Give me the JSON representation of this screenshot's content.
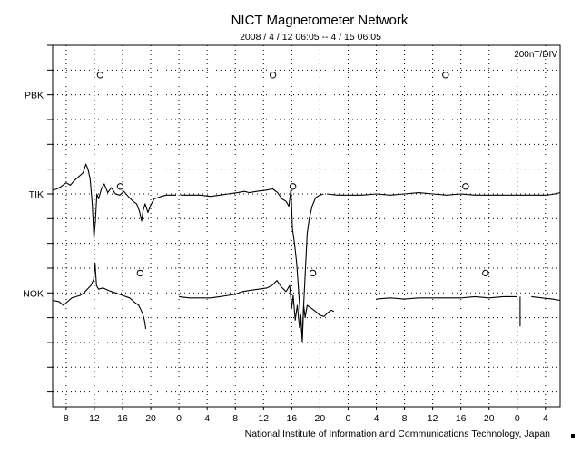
{
  "chart_data": {
    "type": "line",
    "title": "NICT Magnetometer Network",
    "subtitle": "2008 / 4 / 12   06:05 --  4 / 15   06:05",
    "scale_label": "200nT/DIV",
    "footer": "National Institute of Information and Communications Technology, Japan",
    "grid": true,
    "xlim": [
      6.0833,
      78.0833
    ],
    "x_unit": "hours since 2008-04-12 00:00 (UT)",
    "x_ticks": [
      8,
      12,
      16,
      20,
      24,
      28,
      32,
      36,
      40,
      44,
      48,
      52,
      56,
      60,
      64,
      68,
      72,
      76
    ],
    "x_tick_labels": [
      "8",
      "12",
      "16",
      "20",
      "0",
      "4",
      "8",
      "12",
      "16",
      "20",
      "0",
      "4",
      "8",
      "12",
      "16",
      "20",
      "0",
      "4"
    ],
    "y_unit": "divisions (200 nT per division)",
    "ylim": [
      -2.6,
      12.0
    ],
    "series": [
      {
        "name": "PBK",
        "baseline": 10,
        "markers_x": [
          12.83,
          37.33,
          61.83
        ],
        "marker_y": 10.8,
        "segments": []
      },
      {
        "name": "TIK",
        "baseline": 6,
        "markers_x": [
          15.67,
          40.17,
          64.67
        ],
        "marker_y": 6.3,
        "segments": [
          [
            [
              6.08,
              6.15
            ],
            [
              6.7,
              6.2
            ],
            [
              7.3,
              6.3
            ],
            [
              8.0,
              6.45
            ],
            [
              8.6,
              6.35
            ],
            [
              9.2,
              6.55
            ],
            [
              9.8,
              6.7
            ],
            [
              10.4,
              6.85
            ],
            [
              10.8,
              7.2
            ],
            [
              11.1,
              7.0
            ],
            [
              11.4,
              6.6
            ],
            [
              11.7,
              5.6
            ],
            [
              11.95,
              4.2
            ],
            [
              12.15,
              4.9
            ],
            [
              12.35,
              6.0
            ],
            [
              12.6,
              5.8
            ],
            [
              13.0,
              6.2
            ],
            [
              13.4,
              6.4
            ],
            [
              13.9,
              6.05
            ],
            [
              14.4,
              6.25
            ],
            [
              15.0,
              6.0
            ],
            [
              15.6,
              5.95
            ],
            [
              16.2,
              6.1
            ],
            [
              16.8,
              5.9
            ],
            [
              17.5,
              5.7
            ],
            [
              18.0,
              5.6
            ],
            [
              18.4,
              5.3
            ],
            [
              18.7,
              4.9
            ],
            [
              18.9,
              5.3
            ],
            [
              19.2,
              5.6
            ],
            [
              19.6,
              5.25
            ],
            [
              20.0,
              5.55
            ],
            [
              20.5,
              5.8
            ],
            [
              21.0,
              5.85
            ],
            [
              21.5,
              5.9
            ],
            [
              22.2,
              5.95
            ],
            [
              23.0,
              5.95
            ],
            [
              23.6,
              5.95
            ]
          ],
          [
            [
              24.2,
              5.95
            ],
            [
              25.5,
              5.95
            ],
            [
              27.0,
              5.95
            ],
            [
              28.5,
              5.9
            ],
            [
              29.8,
              5.95
            ],
            [
              31.0,
              6.0
            ],
            [
              32.3,
              6.05
            ],
            [
              33.3,
              6.1
            ],
            [
              34.0,
              6.05
            ],
            [
              35.0,
              6.1
            ],
            [
              36.3,
              6.15
            ],
            [
              37.3,
              6.2
            ],
            [
              38.0,
              6.05
            ],
            [
              38.6,
              5.8
            ],
            [
              39.2,
              5.7
            ],
            [
              39.6,
              5.5
            ],
            [
              39.9,
              6.2
            ],
            [
              40.1,
              4.6
            ],
            [
              40.4,
              4.0
            ],
            [
              40.7,
              3.2
            ],
            [
              41.0,
              2.0
            ],
            [
              41.3,
              0.8
            ],
            [
              41.5,
              0.2
            ],
            [
              41.7,
              1.5
            ],
            [
              41.9,
              2.7
            ],
            [
              42.2,
              4.4
            ],
            [
              42.5,
              5.0
            ],
            [
              42.9,
              5.5
            ],
            [
              43.4,
              5.85
            ],
            [
              44.0,
              5.95
            ],
            [
              44.5,
              6.0
            ]
          ],
          [
            [
              45.0,
              6.0
            ],
            [
              46.5,
              5.95
            ],
            [
              48.0,
              5.95
            ],
            [
              50.0,
              5.95
            ],
            [
              52.0,
              6.0
            ],
            [
              54.0,
              5.95
            ],
            [
              56.0,
              6.0
            ],
            [
              58.0,
              6.05
            ],
            [
              60.0,
              6.0
            ],
            [
              62.0,
              5.95
            ],
            [
              64.0,
              6.0
            ],
            [
              66.0,
              5.95
            ],
            [
              68.0,
              5.95
            ],
            [
              70.0,
              5.95
            ],
            [
              72.0,
              5.95
            ],
            [
              74.0,
              5.95
            ],
            [
              76.0,
              5.95
            ],
            [
              77.0,
              5.98
            ],
            [
              78.08,
              6.05
            ]
          ]
        ]
      },
      {
        "name": "NOK",
        "baseline": 2,
        "markers_x": [
          18.5,
          43.0,
          67.5
        ],
        "marker_y": 2.8,
        "segments": [
          [
            [
              6.08,
              1.7
            ],
            [
              7.0,
              1.65
            ],
            [
              7.6,
              1.5
            ],
            [
              8.2,
              1.65
            ],
            [
              8.8,
              1.8
            ],
            [
              9.4,
              1.85
            ],
            [
              10.0,
              1.9
            ],
            [
              10.5,
              2.0
            ],
            [
              11.0,
              2.15
            ],
            [
              11.5,
              2.3
            ],
            [
              11.9,
              2.55
            ],
            [
              12.1,
              3.2
            ],
            [
              12.3,
              2.3
            ],
            [
              12.6,
              2.15
            ],
            [
              13.2,
              2.2
            ],
            [
              14.0,
              2.1
            ],
            [
              15.0,
              2.0
            ],
            [
              16.0,
              1.9
            ],
            [
              17.0,
              1.8
            ],
            [
              17.8,
              1.6
            ],
            [
              18.3,
              1.5
            ],
            [
              18.8,
              1.2
            ],
            [
              19.1,
              0.9
            ],
            [
              19.3,
              0.55
            ]
          ],
          [
            [
              24.0,
              1.85
            ],
            [
              25.5,
              1.8
            ],
            [
              27.0,
              1.8
            ],
            [
              28.5,
              1.8
            ],
            [
              29.8,
              1.85
            ],
            [
              31.0,
              1.9
            ],
            [
              32.0,
              1.95
            ],
            [
              33.0,
              2.05
            ],
            [
              34.0,
              2.1
            ],
            [
              35.3,
              2.15
            ],
            [
              36.5,
              2.2
            ],
            [
              37.2,
              2.3
            ],
            [
              37.9,
              2.5
            ],
            [
              38.5,
              2.25
            ],
            [
              39.2,
              2.05
            ],
            [
              39.7,
              2.3
            ],
            [
              40.0,
              1.4
            ],
            [
              40.2,
              1.9
            ],
            [
              40.5,
              0.9
            ],
            [
              40.8,
              1.5
            ],
            [
              41.1,
              0.6
            ],
            [
              41.3,
              1.1
            ],
            [
              41.5,
              0.0
            ],
            [
              41.7,
              1.5
            ],
            [
              41.9,
              1.0
            ],
            [
              42.2,
              1.5
            ],
            [
              42.7,
              1.4
            ],
            [
              43.4,
              1.25
            ],
            [
              44.0,
              1.1
            ],
            [
              44.6,
              1.05
            ],
            [
              45.1,
              1.2
            ],
            [
              45.6,
              1.3
            ],
            [
              46.0,
              1.25
            ]
          ],
          [
            [
              52.0,
              1.75
            ],
            [
              54.0,
              1.8
            ],
            [
              56.0,
              1.75
            ],
            [
              58.0,
              1.8
            ],
            [
              60.0,
              1.8
            ],
            [
              62.0,
              1.8
            ],
            [
              64.0,
              1.8
            ],
            [
              66.0,
              1.85
            ],
            [
              68.0,
              1.8
            ],
            [
              70.0,
              1.85
            ],
            [
              72.0,
              1.85
            ]
          ],
          [
            [
              74.0,
              1.85
            ],
            [
              75.5,
              1.8
            ],
            [
              77.0,
              1.75
            ],
            [
              78.08,
              1.7
            ]
          ],
          [
            [
              72.4,
              1.85
            ],
            [
              72.4,
              0.65
            ]
          ]
        ]
      }
    ]
  }
}
